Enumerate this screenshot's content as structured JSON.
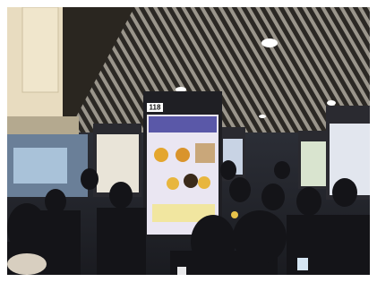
{
  "scene": {
    "board_number": "118"
  }
}
